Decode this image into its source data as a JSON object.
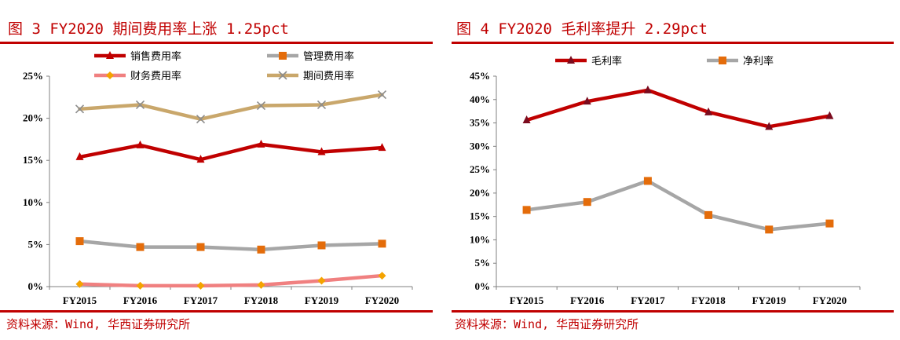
{
  "colors": {
    "accent": "#c00000",
    "selling": "#c00000",
    "admin": "#a6a6a6",
    "admin_marker": "#e46c0a",
    "finance": "#f08080",
    "finance_marker": "#f4a300",
    "period": "#c9a76b",
    "period_marker": "#8c8c8c",
    "gross": "#c00000",
    "gross_marker": "#7b0b1e",
    "net": "#a6a6a6",
    "net_marker": "#e46c0a"
  },
  "left": {
    "title": "图 3  FY2020 期间费用率上涨 1.25pct",
    "source": "资料来源：Wind, 华西证券研究所"
  },
  "right": {
    "title": "图 4  FY2020 毛利率提升 2.29pct",
    "source": "资料来源：Wind, 华西证券研究所"
  },
  "chart_data": [
    {
      "type": "line",
      "categories": [
        "FY2015",
        "FY2016",
        "FY2017",
        "FY2018",
        "FY2019",
        "FY2020"
      ],
      "ylim": [
        0,
        25
      ],
      "yticks": [
        "0%",
        "5%",
        "10%",
        "15%",
        "20%",
        "25%"
      ],
      "series": [
        {
          "name": "销售费用率",
          "values": [
            15.4,
            16.8,
            15.1,
            16.9,
            16.0,
            16.5
          ],
          "marker": "triangle"
        },
        {
          "name": "管理费用率",
          "values": [
            5.4,
            4.7,
            4.7,
            4.4,
            4.9,
            5.1
          ],
          "marker": "square"
        },
        {
          "name": "财务费用率",
          "values": [
            0.3,
            0.1,
            0.1,
            0.2,
            0.7,
            1.3
          ],
          "marker": "diamond"
        },
        {
          "name": "期间费用率",
          "values": [
            21.1,
            21.6,
            19.9,
            21.5,
            21.6,
            22.8
          ],
          "marker": "x"
        }
      ]
    },
    {
      "type": "line",
      "categories": [
        "FY2015",
        "FY2016",
        "FY2017",
        "FY2018",
        "FY2019",
        "FY2020"
      ],
      "ylim": [
        0,
        45
      ],
      "yticks": [
        "0%",
        "5%",
        "10%",
        "15%",
        "20%",
        "25%",
        "30%",
        "35%",
        "40%",
        "45%"
      ],
      "series": [
        {
          "name": "毛利率",
          "values": [
            35.6,
            39.6,
            42.0,
            37.3,
            34.2,
            36.5
          ],
          "marker": "triangle"
        },
        {
          "name": "净利率",
          "values": [
            16.4,
            18.1,
            22.6,
            15.3,
            12.2,
            13.5
          ],
          "marker": "square"
        }
      ]
    }
  ]
}
